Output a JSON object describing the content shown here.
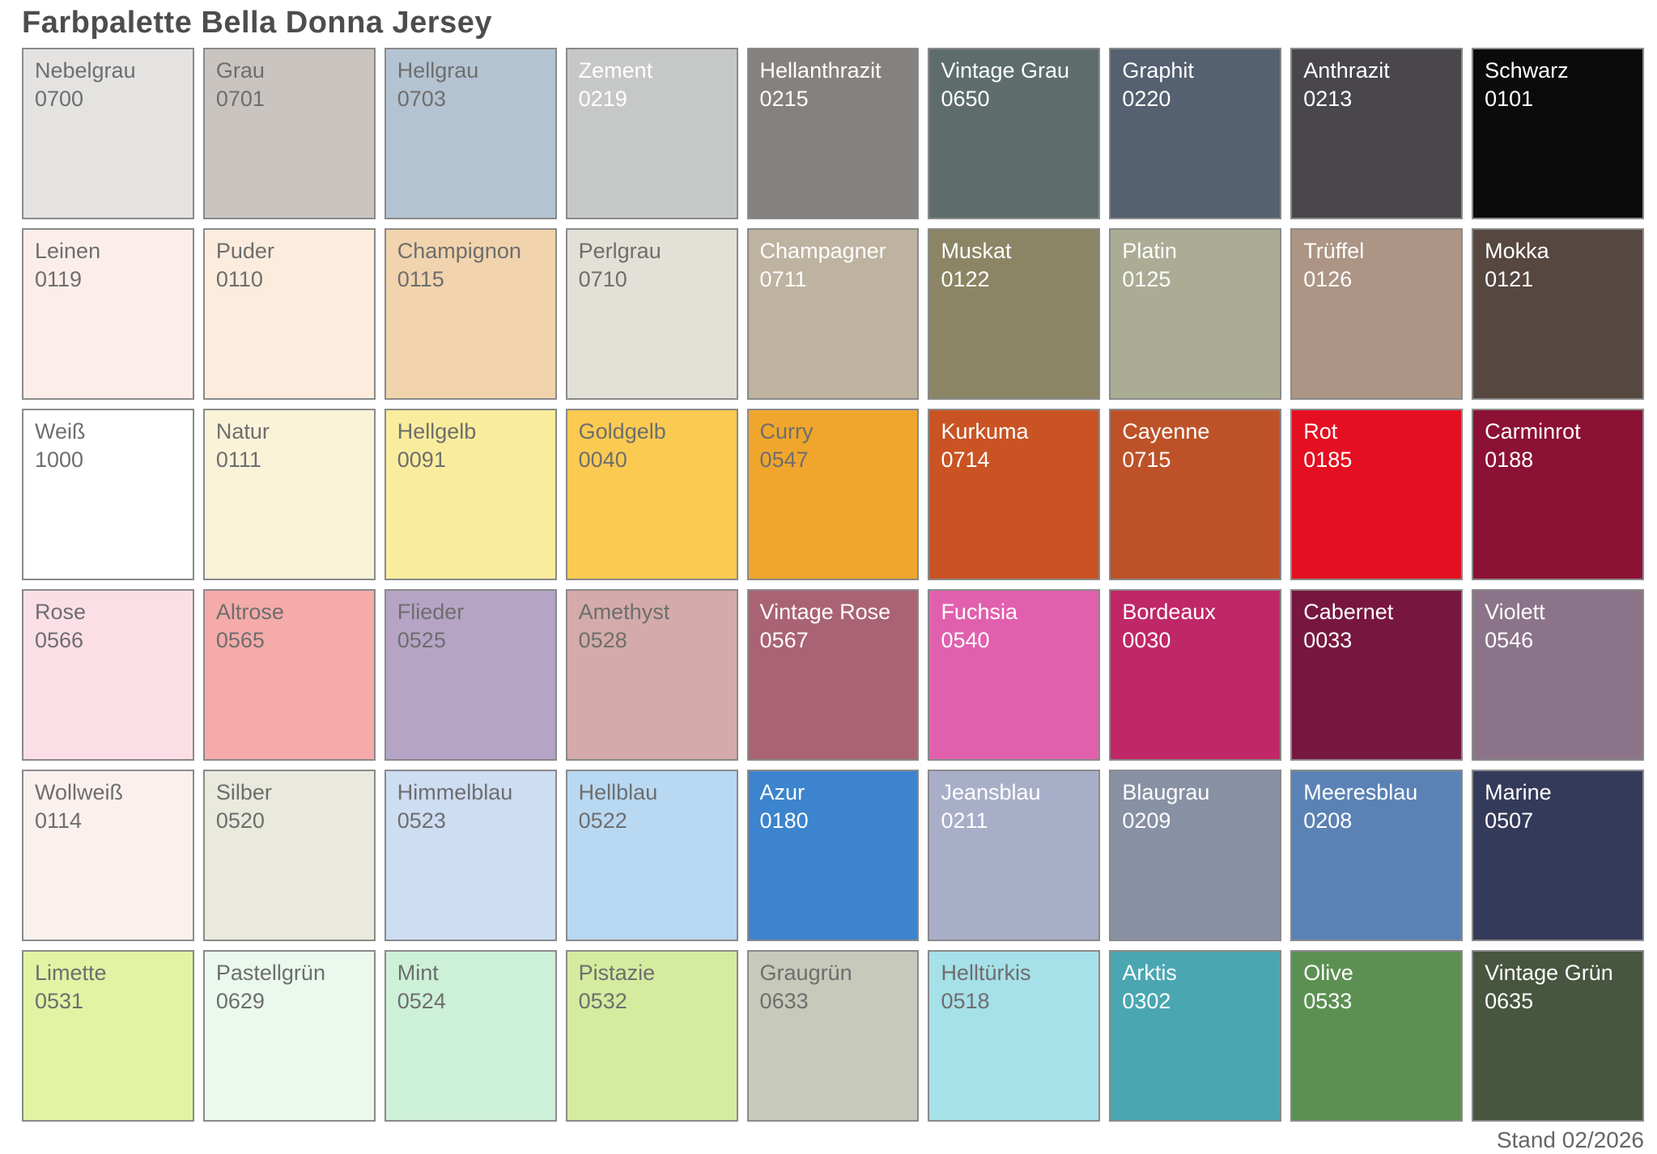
{
  "page": {
    "title": "Farbpalette Bella Donna Jersey",
    "footer": "Stand 02/2026"
  },
  "colors": {
    "page_bg": "#ffffff",
    "title_color": "#4d4d4d",
    "footer_color": "#666666",
    "swatch_border": "#8a8a8a",
    "dark_label": "#6e6e6e",
    "light_label": "#ffffff"
  },
  "palette": {
    "rows": 6,
    "cols": 9,
    "swatches": [
      {
        "name": "Nebelgrau",
        "code": "0700",
        "color": "#e4e3e1",
        "text": "dark"
      },
      {
        "name": "Grau",
        "code": "0701",
        "color": "#c9c4c0",
        "text": "dark"
      },
      {
        "name": "Hellgrau",
        "code": "0703",
        "color": "#b4c3d1",
        "text": "dark"
      },
      {
        "name": "Zement",
        "code": "0219",
        "color": "#c6c8c7",
        "text": "light"
      },
      {
        "name": "Hellanthrazit",
        "code": "0215",
        "color": "#84817f",
        "text": "light"
      },
      {
        "name": "Vintage Grau",
        "code": "0650",
        "color": "#5e6d6c",
        "text": "light"
      },
      {
        "name": "Graphit",
        "code": "0220",
        "color": "#556070",
        "text": "light"
      },
      {
        "name": "Anthrazit",
        "code": "0213",
        "color": "#49464c",
        "text": "light"
      },
      {
        "name": "Schwarz",
        "code": "0101",
        "color": "#0b0b0b",
        "text": "light"
      },
      {
        "name": "Leinen",
        "code": "0119",
        "color": "#fbeeea",
        "text": "dark"
      },
      {
        "name": "Puder",
        "code": "0110",
        "color": "#fbecdd",
        "text": "dark"
      },
      {
        "name": "Champignon",
        "code": "0115",
        "color": "#f1d4ad",
        "text": "dark"
      },
      {
        "name": "Perlgrau",
        "code": "0710",
        "color": "#e3e0d7",
        "text": "dark"
      },
      {
        "name": "Champagner",
        "code": "0711",
        "color": "#beb3a0",
        "text": "light"
      },
      {
        "name": "Muskat",
        "code": "0122",
        "color": "#8c8565",
        "text": "light"
      },
      {
        "name": "Platin",
        "code": "0125",
        "color": "#abac94",
        "text": "light"
      },
      {
        "name": "Trüffel",
        "code": "0126",
        "color": "#ac9584",
        "text": "light"
      },
      {
        "name": "Mokka",
        "code": "0121",
        "color": "#564740",
        "text": "light"
      },
      {
        "name": "Weiß",
        "code": "1000",
        "color": "#ffffff",
        "text": "dark"
      },
      {
        "name": "Natur",
        "code": "0111",
        "color": "#fbf3d8",
        "text": "dark"
      },
      {
        "name": "Hellgelb",
        "code": "0091",
        "color": "#f9ed9d",
        "text": "dark"
      },
      {
        "name": "Goldgelb",
        "code": "0040",
        "color": "#fbca51",
        "text": "dark"
      },
      {
        "name": "Curry",
        "code": "0547",
        "color": "#f0a62c",
        "text": "dark"
      },
      {
        "name": "Kurkuma",
        "code": "0714",
        "color": "#c95323",
        "text": "light"
      },
      {
        "name": "Cayenne",
        "code": "0715",
        "color": "#bd5229",
        "text": "light"
      },
      {
        "name": "Rot",
        "code": "0185",
        "color": "#e40f20",
        "text": "light"
      },
      {
        "name": "Carminrot",
        "code": "0188",
        "color": "#8c1134",
        "text": "light"
      },
      {
        "name": "Rose",
        "code": "0566",
        "color": "#fcdfe6",
        "text": "dark"
      },
      {
        "name": "Altrose",
        "code": "0565",
        "color": "#f4abaa",
        "text": "dark"
      },
      {
        "name": "Flieder",
        "code": "0525",
        "color": "#b5a4c5",
        "text": "dark"
      },
      {
        "name": "Amethyst",
        "code": "0528",
        "color": "#d4abaa",
        "text": "dark"
      },
      {
        "name": "Vintage Rose",
        "code": "0567",
        "color": "#aa6374",
        "text": "light"
      },
      {
        "name": "Fuchsia",
        "code": "0540",
        "color": "#e160ae",
        "text": "light"
      },
      {
        "name": "Bordeaux",
        "code": "0030",
        "color": "#c02767",
        "text": "light"
      },
      {
        "name": "Cabernet",
        "code": "0033",
        "color": "#77173f",
        "text": "light"
      },
      {
        "name": "Violett",
        "code": "0546",
        "color": "#8b7489",
        "text": "light"
      },
      {
        "name": "Wollweiß",
        "code": "0114",
        "color": "#faf1ef",
        "text": "dark"
      },
      {
        "name": "Silber",
        "code": "0520",
        "color": "#e9e9dd",
        "text": "dark"
      },
      {
        "name": "Himmelblau",
        "code": "0523",
        "color": "#cdddf2",
        "text": "dark"
      },
      {
        "name": "Hellblau",
        "code": "0522",
        "color": "#b9d8f2",
        "text": "dark"
      },
      {
        "name": "Azur",
        "code": "0180",
        "color": "#3c84cd",
        "text": "light"
      },
      {
        "name": "Jeansblau",
        "code": "0211",
        "color": "#a9aec8",
        "text": "light"
      },
      {
        "name": "Blaugrau",
        "code": "0209",
        "color": "#8890a4",
        "text": "light"
      },
      {
        "name": "Meeresblau",
        "code": "0208",
        "color": "#5b82b5",
        "text": "light"
      },
      {
        "name": "Marine",
        "code": "0507",
        "color": "#343a59",
        "text": "light"
      },
      {
        "name": "Limette",
        "code": "0531",
        "color": "#e2f3a4",
        "text": "dark"
      },
      {
        "name": "Pastellgrün",
        "code": "0629",
        "color": "#eaf8ee",
        "text": "dark"
      },
      {
        "name": "Mint",
        "code": "0524",
        "color": "#cdf0d9",
        "text": "dark"
      },
      {
        "name": "Pistazie",
        "code": "0532",
        "color": "#d5eb9f",
        "text": "dark"
      },
      {
        "name": "Graugrün",
        "code": "0633",
        "color": "#c7c9bb",
        "text": "dark"
      },
      {
        "name": "Helltürkis",
        "code": "0518",
        "color": "#a6e0e8",
        "text": "dark"
      },
      {
        "name": "Arktis",
        "code": "0302",
        "color": "#4aa7b1",
        "text": "light"
      },
      {
        "name": "Olive",
        "code": "0533",
        "color": "#5c9052",
        "text": "light"
      },
      {
        "name": "Vintage Grün",
        "code": "0635",
        "color": "#48553f",
        "text": "light"
      }
    ]
  }
}
